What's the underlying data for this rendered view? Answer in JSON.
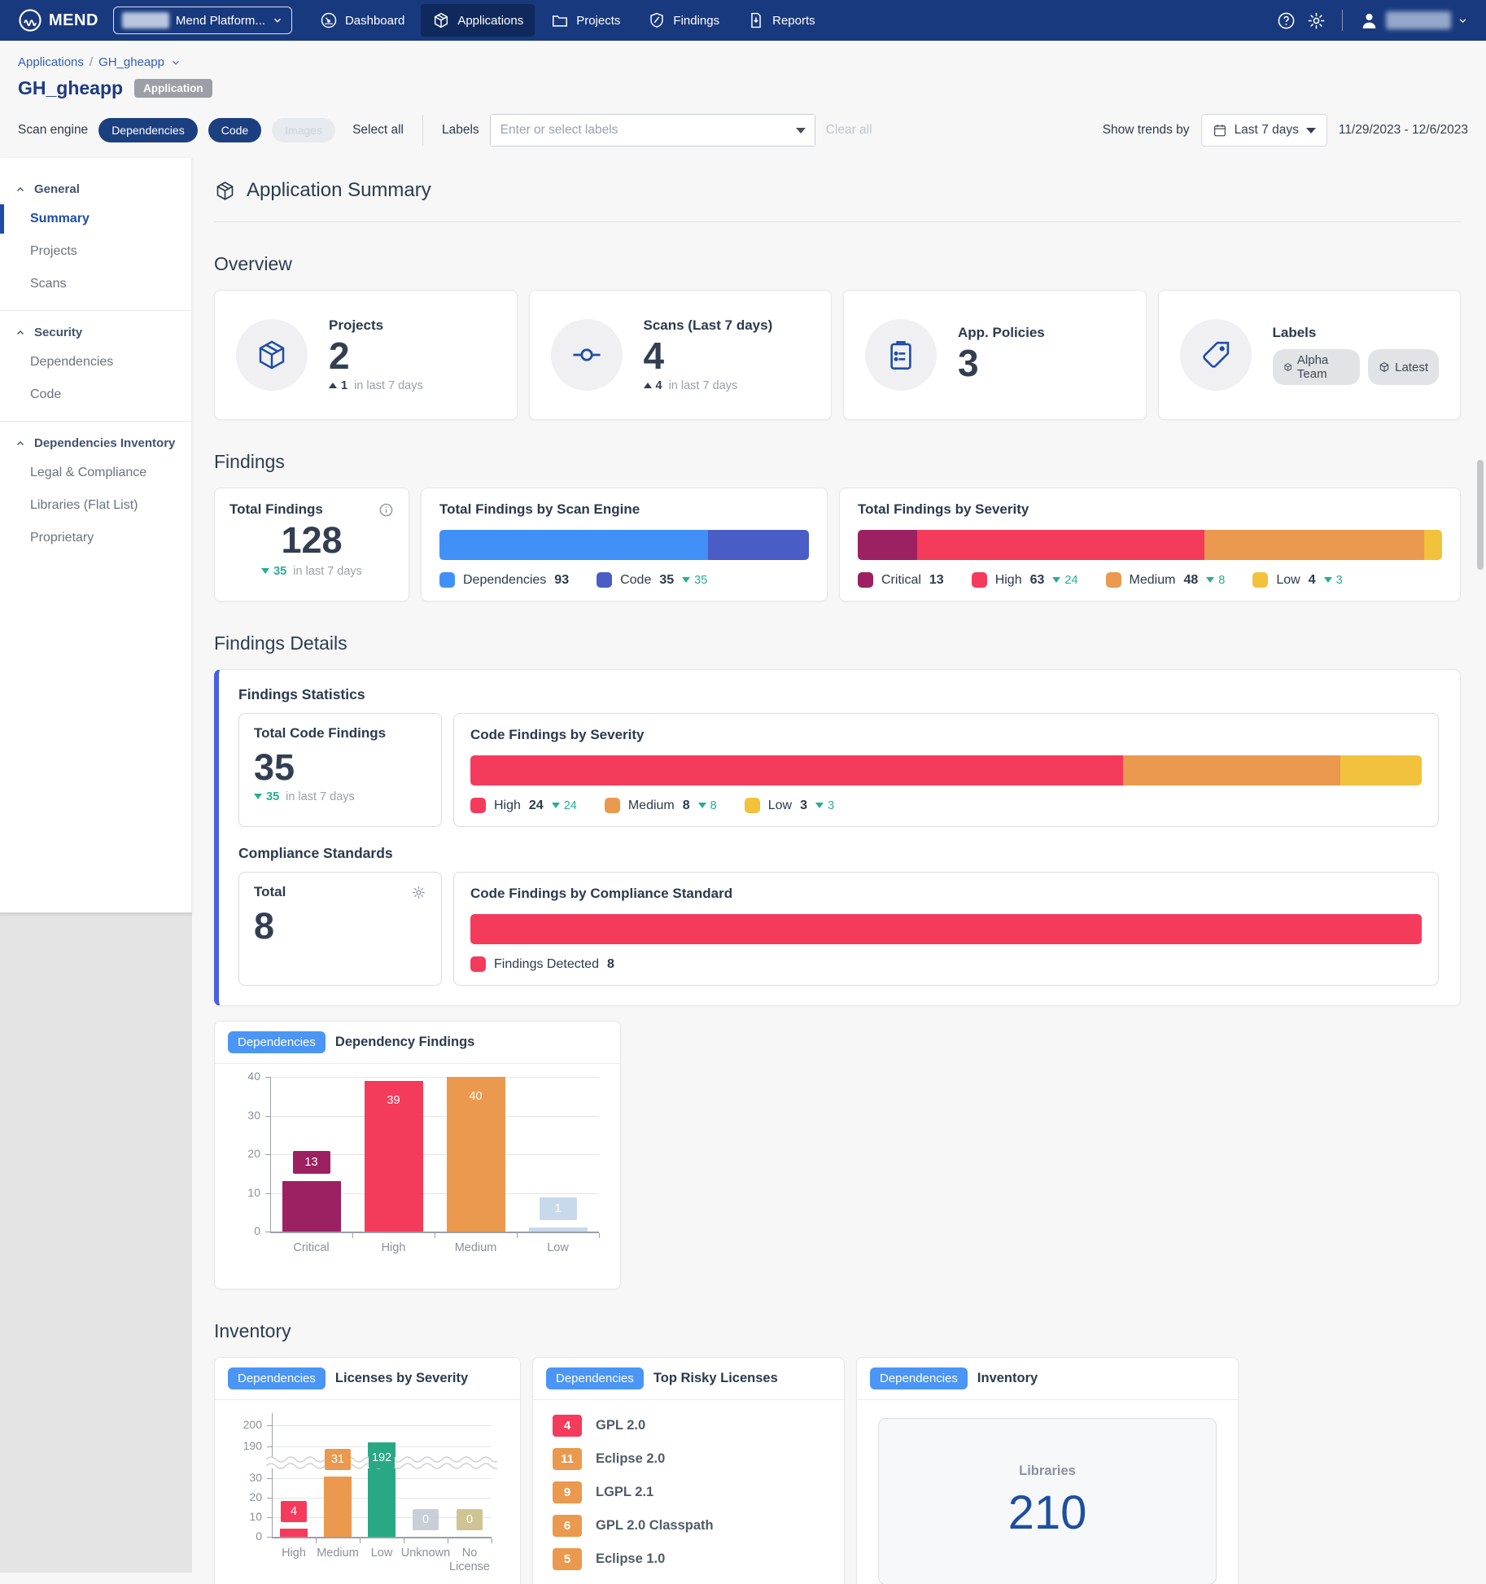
{
  "colors": {
    "nav_bg": "#19397E",
    "nav_active_bg": "#10295C",
    "accent_blue": "#4B95F5",
    "link_blue": "#2F5FC0",
    "selected_blue": "#1f4da5",
    "panel_accent": "#4A5FE0",
    "trend_green": "#27AE92",
    "critical": "#9C2162",
    "high": "#F43B5C",
    "medium": "#EA994E",
    "low_yellow": "#F2C23C",
    "dep_blue": "#4190F7",
    "code_indigo": "#4A5CC5",
    "license_green": "#29A885",
    "unknown_gray": "#C9CFD6",
    "no_license_tan": "#CFC493",
    "low_bar_blue": "#C9D9EC",
    "libraries_blue": "#1d4fa1"
  },
  "nav": {
    "brand": "MEND",
    "org_selector": "Mend Platform...",
    "items": [
      {
        "label": "Dashboard"
      },
      {
        "label": "Applications",
        "active": true
      },
      {
        "label": "Projects"
      },
      {
        "label": "Findings"
      },
      {
        "label": "Reports"
      }
    ]
  },
  "breadcrumb": {
    "root": "Applications",
    "current": "GH_gheapp"
  },
  "page": {
    "title": "GH_gheapp",
    "type_badge": "Application"
  },
  "filters": {
    "scan_engine_label": "Scan engine",
    "engines": [
      {
        "label": "Dependencies",
        "state": "selected"
      },
      {
        "label": "Code",
        "state": "selected"
      },
      {
        "label": "Images",
        "state": "disabled"
      }
    ],
    "select_all": "Select all",
    "labels_label": "Labels",
    "labels_placeholder": "Enter or select labels",
    "clear_all": "Clear all",
    "trends_label": "Show trends by",
    "trends_value": "Last 7 days",
    "date_range": "11/29/2023 - 12/6/2023"
  },
  "sidebar": {
    "sections": [
      {
        "label": "General",
        "items": [
          {
            "label": "Summary",
            "active": true
          },
          {
            "label": "Projects"
          },
          {
            "label": "Scans"
          }
        ]
      },
      {
        "label": "Security",
        "items": [
          {
            "label": "Dependencies"
          },
          {
            "label": "Code"
          }
        ]
      },
      {
        "label": "Dependencies Inventory",
        "items": [
          {
            "label": "Legal & Compliance"
          },
          {
            "label": "Libraries (Flat List)"
          },
          {
            "label": "Proprietary"
          }
        ]
      }
    ]
  },
  "main": {
    "header_title": "Application Summary",
    "overview": {
      "heading": "Overview",
      "cards": [
        {
          "title": "Projects",
          "value": "2",
          "trend": {
            "dir": "up",
            "value": "1",
            "suffix": "in last 7 days"
          }
        },
        {
          "title": "Scans (Last 7 days)",
          "value": "4",
          "trend": {
            "dir": "up",
            "value": "4",
            "suffix": "in last 7 days"
          }
        },
        {
          "title": "App. Policies",
          "value": "3"
        },
        {
          "title": "Labels",
          "badges": [
            {
              "label": "Alpha Team"
            },
            {
              "label": "Latest"
            }
          ]
        }
      ]
    },
    "findings": {
      "heading": "Findings",
      "total": {
        "title": "Total Findings",
        "value": "128",
        "trend": {
          "dir": "down",
          "value": "35",
          "suffix": "in last 7 days"
        }
      },
      "by_engine": {
        "title": "Total Findings by Scan Engine",
        "segments": [
          {
            "label": "Dependencies",
            "value": 93,
            "color": "#4190F7"
          },
          {
            "label": "Code",
            "value": 35,
            "color": "#4A5CC5",
            "trend": {
              "dir": "down",
              "value": "35"
            }
          }
        ]
      },
      "by_severity": {
        "title": "Total Findings by Severity",
        "segments": [
          {
            "label": "Critical",
            "value": 13,
            "color": "#9C2162"
          },
          {
            "label": "High",
            "value": 63,
            "color": "#F43B5C",
            "trend": {
              "dir": "down",
              "value": "24"
            }
          },
          {
            "label": "Medium",
            "value": 48,
            "color": "#EA994E",
            "trend": {
              "dir": "down",
              "value": "8"
            }
          },
          {
            "label": "Low",
            "value": 4,
            "color": "#F2C23C",
            "trend": {
              "dir": "down",
              "value": "3"
            }
          }
        ]
      }
    },
    "details": {
      "heading": "Findings Details",
      "statistics_title": "Findings Statistics",
      "total_code": {
        "title": "Total Code Findings",
        "value": "35",
        "trend": {
          "dir": "down",
          "value": "35",
          "suffix": "in last 7 days"
        }
      },
      "code_by_severity": {
        "title": "Code Findings by Severity",
        "segments": [
          {
            "label": "High",
            "value": 24,
            "color": "#F43B5C",
            "trend": {
              "dir": "down",
              "value": "24"
            }
          },
          {
            "label": "Medium",
            "value": 8,
            "color": "#EA994E",
            "trend": {
              "dir": "down",
              "value": "8"
            }
          },
          {
            "label": "Low",
            "value": 3,
            "color": "#F2C23C",
            "trend": {
              "dir": "down",
              "value": "3"
            }
          }
        ]
      },
      "compliance_title": "Compliance Standards",
      "compliance_total": {
        "title": "Total",
        "value": "8"
      },
      "by_standard": {
        "title": "Code Findings by Compliance Standard",
        "segments": [
          {
            "label": "Findings Detected",
            "value": 8,
            "color": "#F43B5C"
          }
        ]
      }
    },
    "dependency_findings": {
      "scan_badge": "Dependencies"
    },
    "inventory": {
      "heading": "Inventory",
      "licenses": {
        "scan_badge": "Dependencies"
      },
      "risky": {
        "scan_badge": "Dependencies",
        "title": "Top Risky Licenses",
        "items": [
          {
            "count": "4",
            "color": "#F43B5C",
            "label": "GPL 2.0"
          },
          {
            "count": "11",
            "color": "#EA994E",
            "label": "Eclipse 2.0"
          },
          {
            "count": "9",
            "color": "#EA994E",
            "label": "LGPL 2.1"
          },
          {
            "count": "6",
            "color": "#EA994E",
            "label": "GPL 2.0 Classpath"
          },
          {
            "count": "5",
            "color": "#EA994E",
            "label": "Eclipse 1.0"
          }
        ]
      },
      "library_summary": {
        "scan_badge": "Dependencies",
        "title": "Inventory",
        "metric_label": "Libraries",
        "metric_value": "210"
      }
    }
  },
  "chart_data": [
    {
      "type": "bar",
      "title": "Dependency Findings",
      "categories": [
        "Critical",
        "High",
        "Medium",
        "Low"
      ],
      "values": [
        13,
        39,
        40,
        1
      ],
      "colors": [
        "#9C2162",
        "#F43B5C",
        "#EA994E",
        "#C9D9EC"
      ],
      "ylim": [
        0,
        40
      ],
      "yticks": [
        0,
        10,
        20,
        30,
        40
      ],
      "grid": true,
      "legend": "none"
    },
    {
      "type": "bar",
      "title": "Licenses by Severity",
      "categories": [
        "High",
        "Medium",
        "Low",
        "Unknown",
        "No License"
      ],
      "values": [
        4,
        31,
        192,
        0,
        0
      ],
      "colors": [
        "#F43B5C",
        "#EA994E",
        "#29A885",
        "#C9CFD6",
        "#CFC493"
      ],
      "broken_axis": true,
      "yticks_lower": [
        0,
        10,
        20,
        30
      ],
      "yticks_upper": [
        190,
        200
      ],
      "grid": true,
      "legend": "none"
    }
  ]
}
